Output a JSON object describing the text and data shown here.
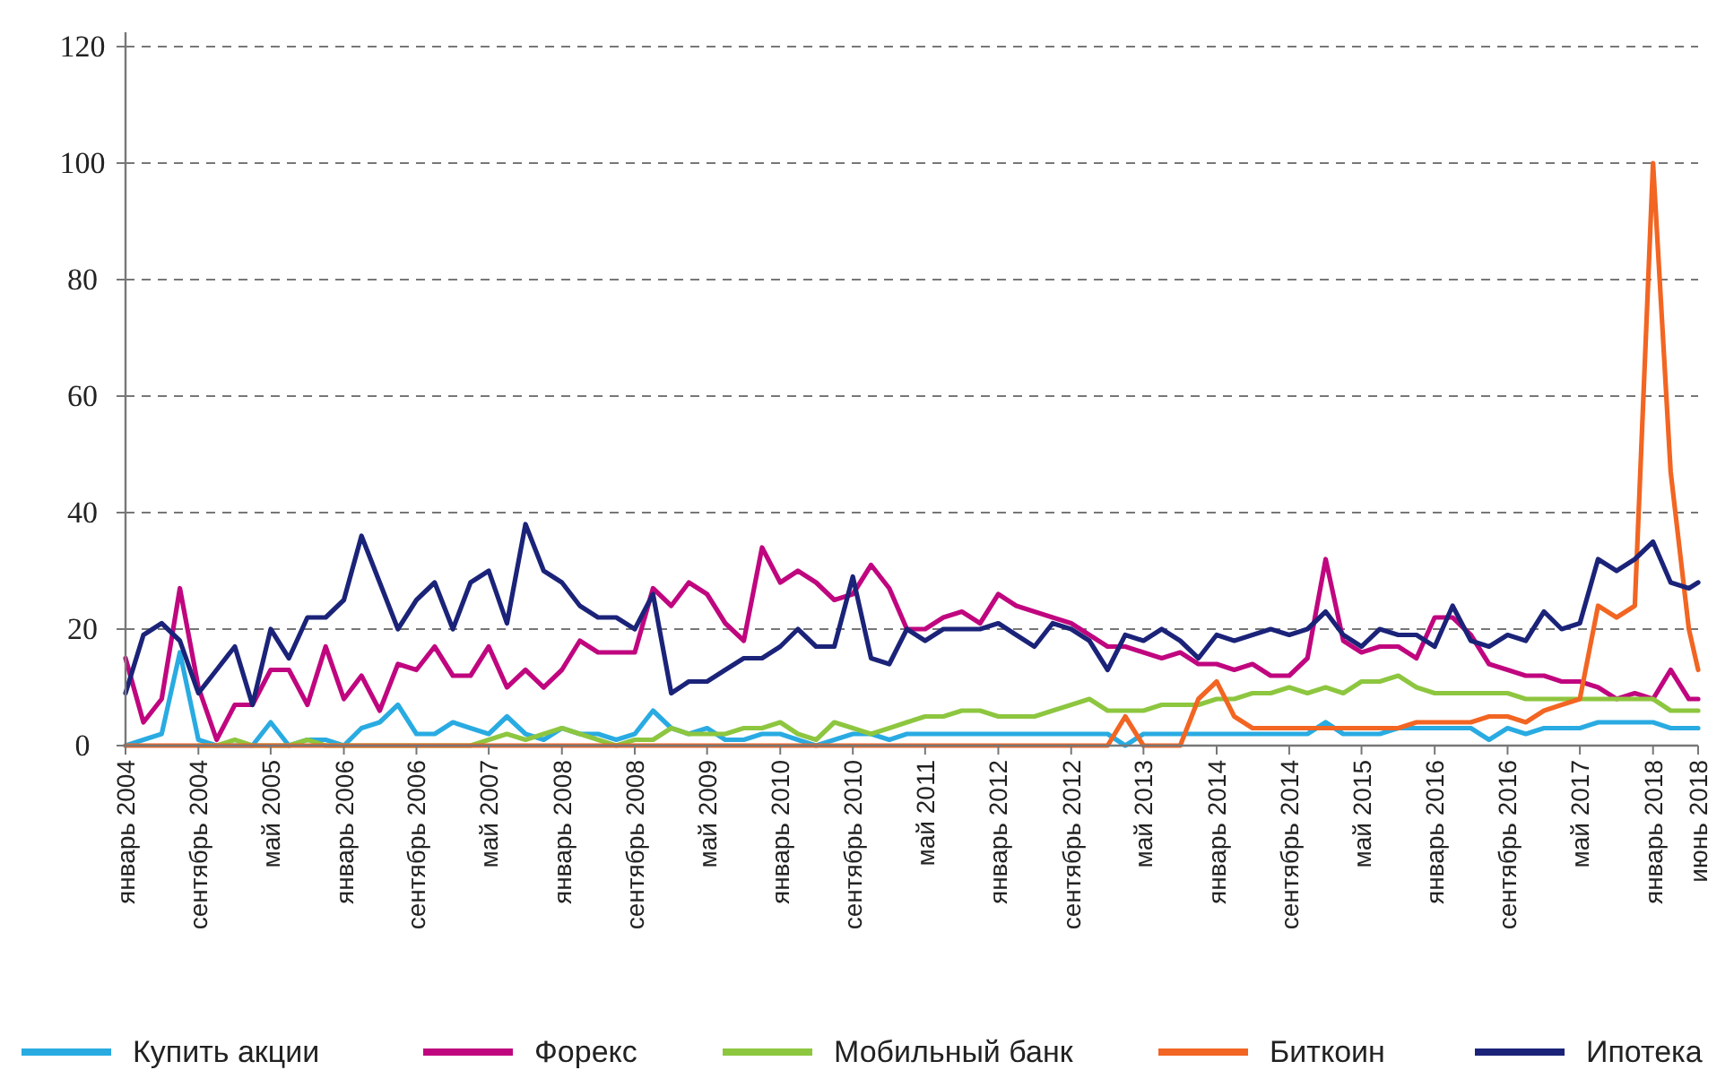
{
  "chart_data": {
    "type": "line",
    "x": [
      "2004-01",
      "2004-03",
      "2004-05",
      "2004-07",
      "2004-09",
      "2004-11",
      "2005-01",
      "2005-03",
      "2005-05",
      "2005-07",
      "2005-09",
      "2005-11",
      "2006-01",
      "2006-03",
      "2006-05",
      "2006-07",
      "2006-09",
      "2006-11",
      "2007-01",
      "2007-03",
      "2007-05",
      "2007-07",
      "2007-09",
      "2007-11",
      "2008-01",
      "2008-03",
      "2008-05",
      "2008-07",
      "2008-09",
      "2008-11",
      "2009-01",
      "2009-03",
      "2009-05",
      "2009-07",
      "2009-09",
      "2009-11",
      "2010-01",
      "2010-03",
      "2010-05",
      "2010-07",
      "2010-09",
      "2010-11",
      "2011-01",
      "2011-03",
      "2011-05",
      "2011-07",
      "2011-09",
      "2011-11",
      "2012-01",
      "2012-03",
      "2012-05",
      "2012-07",
      "2012-09",
      "2012-11",
      "2013-01",
      "2013-03",
      "2013-05",
      "2013-07",
      "2013-09",
      "2013-11",
      "2014-01",
      "2014-03",
      "2014-05",
      "2014-07",
      "2014-09",
      "2014-11",
      "2015-01",
      "2015-03",
      "2015-05",
      "2015-07",
      "2015-09",
      "2015-11",
      "2016-01",
      "2016-03",
      "2016-05",
      "2016-07",
      "2016-09",
      "2016-11",
      "2017-01",
      "2017-03",
      "2017-05",
      "2017-07",
      "2017-09",
      "2017-11",
      "2018-01",
      "2018-03",
      "2018-05",
      "2018-06"
    ],
    "series": [
      {
        "name": "Купить акции",
        "color": "#29abe2",
        "values": [
          0,
          1,
          2,
          16,
          1,
          0,
          0,
          0,
          4,
          0,
          1,
          1,
          0,
          3,
          4,
          7,
          2,
          2,
          4,
          3,
          2,
          5,
          2,
          1,
          3,
          2,
          2,
          1,
          2,
          6,
          3,
          2,
          3,
          1,
          1,
          2,
          2,
          1,
          0,
          1,
          2,
          2,
          1,
          2,
          2,
          2,
          2,
          2,
          2,
          2,
          2,
          2,
          2,
          2,
          2,
          0,
          2,
          2,
          2,
          2,
          2,
          2,
          2,
          2,
          2,
          2,
          4,
          2,
          2,
          2,
          3,
          3,
          3,
          3,
          3,
          1,
          3,
          2,
          3,
          3,
          3,
          4,
          4,
          4,
          4,
          3,
          3,
          3
        ]
      },
      {
        "name": "Форекс",
        "color": "#c0067f",
        "values": [
          15,
          4,
          8,
          27,
          10,
          1,
          7,
          7,
          13,
          13,
          7,
          17,
          8,
          12,
          6,
          14,
          13,
          17,
          12,
          12,
          17,
          10,
          13,
          10,
          13,
          18,
          16,
          16,
          16,
          27,
          24,
          28,
          26,
          21,
          18,
          34,
          28,
          30,
          28,
          25,
          26,
          31,
          27,
          20,
          20,
          22,
          23,
          21,
          26,
          24,
          23,
          22,
          21,
          19,
          17,
          17,
          16,
          15,
          16,
          14,
          14,
          13,
          14,
          12,
          12,
          15,
          32,
          18,
          16,
          17,
          17,
          15,
          22,
          22,
          19,
          14,
          13,
          12,
          12,
          11,
          11,
          10,
          8,
          9,
          8,
          13,
          8,
          8
        ]
      },
      {
        "name": "Мобильный банк",
        "color": "#8dc63f",
        "values": [
          null,
          null,
          null,
          null,
          0,
          0,
          1,
          0,
          0,
          0,
          1,
          0,
          0,
          0,
          0,
          0,
          0,
          0,
          0,
          0,
          1,
          2,
          1,
          2,
          3,
          2,
          1,
          0,
          1,
          1,
          3,
          2,
          2,
          2,
          3,
          3,
          4,
          2,
          1,
          4,
          3,
          2,
          3,
          4,
          5,
          5,
          6,
          6,
          5,
          5,
          5,
          6,
          7,
          8,
          6,
          6,
          6,
          7,
          7,
          7,
          8,
          8,
          9,
          9,
          10,
          9,
          10,
          9,
          11,
          11,
          12,
          10,
          9,
          9,
          9,
          9,
          9,
          8,
          8,
          8,
          8,
          8,
          8,
          8,
          8,
          6,
          6,
          6
        ]
      },
      {
        "name": "Биткоин",
        "color": "#f26522",
        "values": [
          0,
          0,
          0,
          0,
          0,
          0,
          0,
          0,
          0,
          0,
          0,
          0,
          0,
          0,
          0,
          0,
          0,
          0,
          0,
          0,
          0,
          0,
          0,
          0,
          0,
          0,
          0,
          0,
          0,
          0,
          0,
          0,
          0,
          0,
          0,
          0,
          0,
          0,
          0,
          0,
          0,
          0,
          0,
          0,
          0,
          0,
          0,
          0,
          0,
          0,
          0,
          0,
          0,
          0,
          0,
          5,
          0,
          0,
          0,
          8,
          11,
          5,
          3,
          3,
          3,
          3,
          3,
          3,
          3,
          3,
          3,
          4,
          4,
          4,
          4,
          5,
          5,
          4,
          6,
          7,
          8,
          24,
          22,
          24,
          100,
          47,
          20,
          13
        ]
      },
      {
        "name": "Ипотека",
        "color": "#1b2379",
        "values": [
          9,
          19,
          21,
          18,
          9,
          13,
          17,
          7,
          20,
          15,
          22,
          22,
          25,
          36,
          28,
          20,
          25,
          28,
          20,
          28,
          30,
          21,
          38,
          30,
          28,
          24,
          22,
          22,
          20,
          26,
          9,
          11,
          11,
          13,
          15,
          15,
          17,
          20,
          17,
          17,
          29,
          15,
          14,
          20,
          18,
          20,
          20,
          20,
          21,
          19,
          17,
          21,
          20,
          18,
          13,
          19,
          18,
          20,
          18,
          15,
          19,
          18,
          19,
          20,
          19,
          20,
          23,
          19,
          17,
          20,
          19,
          19,
          17,
          24,
          18,
          17,
          19,
          18,
          23,
          20,
          21,
          32,
          30,
          32,
          35,
          28,
          27,
          28
        ]
      }
    ],
    "xlim": [
      "2004-01",
      "2018-06"
    ],
    "xticks": [
      {
        "value": "2004-01",
        "label": "январь 2004"
      },
      {
        "value": "2004-09",
        "label": "сентябрь 2004"
      },
      {
        "value": "2005-05",
        "label": "май 2005"
      },
      {
        "value": "2006-01",
        "label": "январь 2006"
      },
      {
        "value": "2006-09",
        "label": "сентябрь 2006"
      },
      {
        "value": "2007-05",
        "label": "май 2007"
      },
      {
        "value": "2008-01",
        "label": "январь 2008"
      },
      {
        "value": "2008-09",
        "label": "сентябрь 2008"
      },
      {
        "value": "2009-05",
        "label": "май 2009"
      },
      {
        "value": "2010-01",
        "label": "январь 2010"
      },
      {
        "value": "2010-09",
        "label": "сентябрь 2010"
      },
      {
        "value": "2011-05",
        "label": "май 2011"
      },
      {
        "value": "2012-01",
        "label": "январь 2012"
      },
      {
        "value": "2012-09",
        "label": "сентябрь 2012"
      },
      {
        "value": "2013-05",
        "label": "май 2013"
      },
      {
        "value": "2014-01",
        "label": "январь 2014"
      },
      {
        "value": "2014-09",
        "label": "сентябрь 2014"
      },
      {
        "value": "2015-05",
        "label": "май 2015"
      },
      {
        "value": "2016-01",
        "label": "январь 2016"
      },
      {
        "value": "2016-09",
        "label": "сентябрь 2016"
      },
      {
        "value": "2017-05",
        "label": "май 2017"
      },
      {
        "value": "2018-01",
        "label": "январь 2018"
      },
      {
        "value": "2018-06",
        "label": "июнь 2018"
      }
    ],
    "ylim": [
      0,
      120
    ],
    "yticks": [
      0,
      20,
      40,
      60,
      80,
      100,
      120
    ],
    "grid": "y",
    "legend": "bottom",
    "marker": "none",
    "line_style": "solid"
  }
}
